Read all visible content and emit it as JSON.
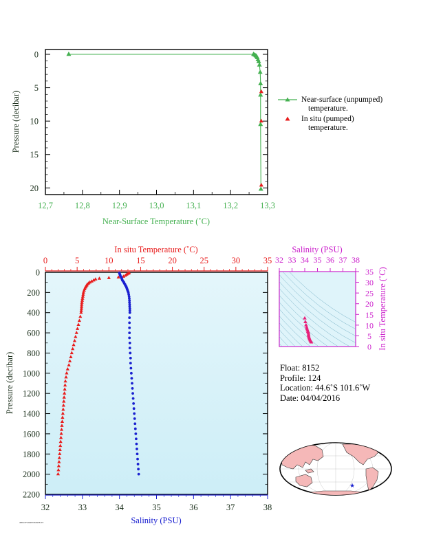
{
  "colors": {
    "green": "#44b050",
    "red": "#e81c1c",
    "blue": "#1a20d0",
    "magenta": "#cc22cc",
    "plot_bg_bottom": "#cdeef7",
    "pink": "#e8207a",
    "axis_dark": "#1a2e1a"
  },
  "top_chart": {
    "xlabel": "Near-Surface Temperature (˚C)",
    "ylabel": "Pressure (decibar)",
    "x_ticks": [
      "12,7",
      "12,8",
      "12,9",
      "13,0",
      "13,1",
      "13,2",
      "13,3"
    ],
    "y_ticks": [
      "0",
      "5",
      "10",
      "15",
      "20"
    ],
    "legend": {
      "near_surface_line1": "Near-surface (unpumped)",
      "near_surface_line2": "temperature.",
      "in_situ_line1": "In situ (pumped)",
      "in_situ_line2": "temperature."
    }
  },
  "bottom_chart": {
    "top_xlabel": "In situ Temperature (˚C)",
    "bottom_xlabel": "Salinity (PSU)",
    "ylabel": "Pressure (decibar)",
    "temp_ticks": [
      "0",
      "5",
      "10",
      "15",
      "20",
      "25",
      "30",
      "35"
    ],
    "sal_ticks": [
      "32",
      "33",
      "34",
      "35",
      "36",
      "37",
      "38"
    ],
    "pres_ticks": [
      "0",
      "200",
      "400",
      "600",
      "800",
      "1000",
      "1200",
      "1400",
      "1600",
      "1800",
      "2000",
      "2200"
    ]
  },
  "ts_chart": {
    "top_label": "Salinity (PSU)",
    "right_label": "In situ Temperature (˚C)",
    "sal_ticks": [
      "32",
      "33",
      "34",
      "35",
      "36",
      "37",
      "38"
    ],
    "temp_ticks": [
      "0",
      "5",
      "10",
      "15",
      "20",
      "25",
      "30",
      "35"
    ]
  },
  "info": {
    "float": "Float:  8152",
    "profile": "Profile:  124",
    "location": "Location:  44.6˚S  101.6˚W",
    "date": "Date:  04/04/2016"
  },
  "footnote": "ARGO FLOAT DATA PLOT",
  "chart_data": [
    {
      "type": "line",
      "title": "",
      "xlabel": "Near-Surface Temperature (˚C)",
      "ylabel": "Pressure (decibar)",
      "xlim": [
        12.7,
        13.3
      ],
      "ylim": [
        0,
        21
      ],
      "y_inverted": true,
      "legend_position": "right",
      "series": [
        {
          "name": "Near-surface (unpumped) temperature.",
          "marker": "triangle",
          "points": [
            [
              12.763,
              0
            ],
            [
              13.262,
              0
            ],
            [
              13.265,
              0.1
            ],
            [
              13.268,
              0.2
            ],
            [
              13.27,
              0.3
            ],
            [
              13.272,
              0.5
            ],
            [
              13.274,
              0.8
            ],
            [
              13.276,
              1.1
            ],
            [
              13.278,
              1.6
            ],
            [
              13.28,
              2.7
            ],
            [
              13.281,
              4.4
            ],
            [
              13.281,
              6.1
            ],
            [
              13.281,
              10.5
            ],
            [
              13.282,
              20.2
            ]
          ]
        },
        {
          "name": "In situ (pumped) temperature.",
          "marker": "triangle",
          "points": [
            [
              13.283,
              5.6
            ],
            [
              13.283,
              10.0
            ],
            [
              13.283,
              19.6
            ]
          ]
        }
      ]
    },
    {
      "type": "scatter",
      "title": "",
      "ylabel": "Pressure (decibar)",
      "ylim": [
        0,
        2200
      ],
      "y_inverted": true,
      "series": [
        {
          "name": "In situ Temperature (˚C)",
          "axis": "top",
          "xlim": [
            0,
            35
          ],
          "points": [
            [
              13.2,
              8
            ],
            [
              13.0,
              14
            ],
            [
              12.8,
              22
            ],
            [
              12.6,
              32
            ],
            [
              12.3,
              42
            ],
            [
              11.5,
              50
            ],
            [
              10.0,
              56
            ],
            [
              8.5,
              62
            ],
            [
              7.9,
              70
            ],
            [
              7.6,
              80
            ],
            [
              7.3,
              90
            ],
            [
              7.0,
              100
            ],
            [
              6.8,
              110
            ],
            [
              6.6,
              120
            ],
            [
              6.5,
              130
            ],
            [
              6.4,
              140
            ],
            [
              6.3,
              150
            ],
            [
              6.2,
              165
            ],
            [
              6.1,
              180
            ],
            [
              6.0,
              200
            ],
            [
              5.95,
              220
            ],
            [
              5.9,
              240
            ],
            [
              5.85,
              260
            ],
            [
              5.8,
              280
            ],
            [
              5.75,
              300
            ],
            [
              5.72,
              320
            ],
            [
              5.7,
              340
            ],
            [
              5.68,
              360
            ],
            [
              5.65,
              380
            ],
            [
              5.62,
              400
            ],
            [
              5.5,
              440
            ],
            [
              5.35,
              480
            ],
            [
              5.2,
              520
            ],
            [
              5.05,
              560
            ],
            [
              4.9,
              600
            ],
            [
              4.75,
              640
            ],
            [
              4.6,
              680
            ],
            [
              4.45,
              720
            ],
            [
              4.3,
              760
            ],
            [
              4.15,
              800
            ],
            [
              4.0,
              840
            ],
            [
              3.85,
              880
            ],
            [
              3.7,
              920
            ],
            [
              3.5,
              960
            ],
            [
              3.35,
              1000
            ],
            [
              3.25,
              1040
            ],
            [
              3.15,
              1080
            ],
            [
              3.1,
              1120
            ],
            [
              3.05,
              1160
            ],
            [
              3.0,
              1200
            ],
            [
              2.95,
              1240
            ],
            [
              2.9,
              1280
            ],
            [
              2.85,
              1320
            ],
            [
              2.8,
              1360
            ],
            [
              2.75,
              1400
            ],
            [
              2.7,
              1440
            ],
            [
              2.65,
              1480
            ],
            [
              2.6,
              1520
            ],
            [
              2.55,
              1560
            ],
            [
              2.5,
              1600
            ],
            [
              2.45,
              1640
            ],
            [
              2.4,
              1680
            ],
            [
              2.35,
              1720
            ],
            [
              2.3,
              1760
            ],
            [
              2.25,
              1800
            ],
            [
              2.2,
              1840
            ],
            [
              2.15,
              1880
            ],
            [
              2.1,
              1920
            ],
            [
              2.05,
              1960
            ],
            [
              2.0,
              2000
            ]
          ]
        },
        {
          "name": "Salinity (PSU)",
          "axis": "bottom",
          "xlim": [
            32,
            38
          ],
          "points": [
            [
              34.0,
              5
            ],
            [
              34.0,
              12
            ],
            [
              34.01,
              20
            ],
            [
              34.02,
              30
            ],
            [
              34.03,
              40
            ],
            [
              34.05,
              50
            ],
            [
              34.06,
              60
            ],
            [
              34.07,
              70
            ],
            [
              34.08,
              80
            ],
            [
              34.1,
              90
            ],
            [
              34.12,
              100
            ],
            [
              34.13,
              110
            ],
            [
              34.15,
              120
            ],
            [
              34.16,
              130
            ],
            [
              34.18,
              140
            ],
            [
              34.19,
              150
            ],
            [
              34.2,
              160
            ],
            [
              34.21,
              170
            ],
            [
              34.22,
              180
            ],
            [
              34.23,
              190
            ],
            [
              34.24,
              200
            ],
            [
              34.25,
              220
            ],
            [
              34.26,
              240
            ],
            [
              34.265,
              260
            ],
            [
              34.27,
              280
            ],
            [
              34.27,
              300
            ],
            [
              34.275,
              320
            ],
            [
              34.275,
              340
            ],
            [
              34.28,
              360
            ],
            [
              34.28,
              380
            ],
            [
              34.28,
              400
            ],
            [
              34.27,
              450
            ],
            [
              34.27,
              500
            ],
            [
              34.27,
              550
            ],
            [
              34.27,
              600
            ],
            [
              34.27,
              650
            ],
            [
              34.28,
              700
            ],
            [
              34.28,
              750
            ],
            [
              34.29,
              800
            ],
            [
              34.3,
              850
            ],
            [
              34.3,
              900
            ],
            [
              34.31,
              950
            ],
            [
              34.32,
              1000
            ],
            [
              34.33,
              1050
            ],
            [
              34.34,
              1100
            ],
            [
              34.35,
              1150
            ],
            [
              34.36,
              1200
            ],
            [
              34.37,
              1250
            ],
            [
              34.38,
              1300
            ],
            [
              34.39,
              1350
            ],
            [
              34.4,
              1400
            ],
            [
              34.41,
              1450
            ],
            [
              34.42,
              1500
            ],
            [
              34.43,
              1550
            ],
            [
              34.44,
              1600
            ],
            [
              34.45,
              1650
            ],
            [
              34.46,
              1700
            ],
            [
              34.47,
              1750
            ],
            [
              34.48,
              1800
            ],
            [
              34.49,
              1850
            ],
            [
              34.5,
              1900
            ],
            [
              34.51,
              1950
            ],
            [
              34.52,
              2000
            ]
          ]
        }
      ]
    },
    {
      "type": "scatter",
      "title": "",
      "xlabel": "Salinity (PSU)",
      "ylabel": "In situ Temperature (˚C)",
      "xlim": [
        32,
        38
      ],
      "ylim": [
        0,
        35
      ],
      "series": [
        {
          "name": "T-S",
          "points": [
            [
              34.0,
              13.2
            ],
            [
              34.05,
              11.5
            ],
            [
              34.1,
              10.0
            ],
            [
              34.15,
              9.0
            ],
            [
              34.18,
              8.2
            ],
            [
              34.22,
              7.6
            ],
            [
              34.25,
              7.0
            ],
            [
              34.28,
              6.4
            ],
            [
              34.3,
              5.8
            ],
            [
              34.3,
              5.2
            ],
            [
              34.32,
              4.6
            ],
            [
              34.35,
              4.0
            ],
            [
              34.38,
              3.5
            ],
            [
              34.42,
              3.0
            ],
            [
              34.46,
              2.6
            ],
            [
              34.5,
              2.2
            ],
            [
              34.52,
              2.0
            ]
          ]
        }
      ]
    }
  ]
}
